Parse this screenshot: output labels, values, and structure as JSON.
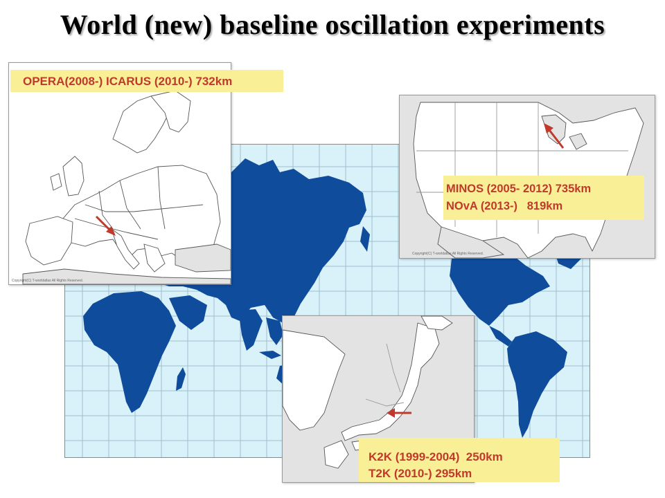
{
  "title": "World (new) baseline oscillation experiments",
  "colors": {
    "ocean": "#d9f1f8",
    "land": "#0f4c9c",
    "grid": "#9dbfcf",
    "label_bg": "#f8ef97",
    "label_text": "#c0392b",
    "arrow": "#c0392b"
  },
  "europe_panel": {
    "label": "OPERA(2008-)  ICARUS (2010-) 732km",
    "copyright": "Copyright(C) T-worldatlas All Rights Reserved."
  },
  "usa_panel": {
    "label_line1": "MINOS (2005- 2012) 735km",
    "label_line2": "NOvA (2013-)   819km",
    "copyright": "Copyright(C) T-worldatlas All Rights Reserved."
  },
  "japan_panel": {
    "label_line1": "K2K (1999-2004)  250km",
    "label_line2": "T2K (2010-) 295km"
  }
}
